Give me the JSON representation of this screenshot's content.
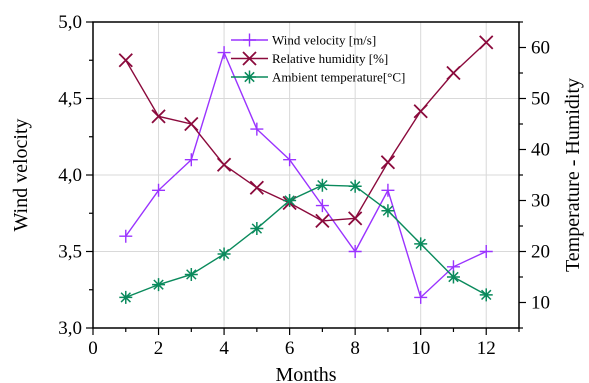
{
  "chart_data": {
    "type": "line",
    "xlabel": "Months",
    "ylabel_left": "Wind velocity",
    "ylabel_right": "Temperature - Humidity",
    "x_range": [
      0,
      13
    ],
    "x_ticks": [
      0,
      2,
      4,
      6,
      8,
      10,
      12
    ],
    "x_tick_labels": [
      "0",
      "2",
      "4",
      "6",
      "8",
      "10",
      "12"
    ],
    "y_left_range": [
      3.0,
      5.0
    ],
    "y_left_ticks": [
      3.0,
      3.5,
      4.0,
      4.5,
      5.0
    ],
    "y_left_tick_labels": [
      "3,0",
      "3,5",
      "4,0",
      "4,5",
      "5,0"
    ],
    "y_right_range": [
      5,
      65
    ],
    "y_right_ticks": [
      10,
      20,
      30,
      40,
      50,
      60
    ],
    "y_right_tick_labels": [
      "10",
      "20",
      "30",
      "40",
      "50",
      "60"
    ],
    "grid": true,
    "legend_position": "top-center",
    "x": [
      1,
      2,
      3,
      4,
      5,
      6,
      7,
      8,
      9,
      10,
      11,
      12
    ],
    "series": [
      {
        "name": "Wind velocity [m/s]",
        "axis": "left",
        "marker": "plus",
        "color": "#9a33ff",
        "values": [
          3.6,
          3.9,
          4.1,
          4.8,
          4.3,
          4.1,
          3.8,
          3.5,
          3.9,
          3.2,
          3.4,
          3.5
        ]
      },
      {
        "name": "Relative humidity [%]",
        "axis": "right",
        "marker": "x",
        "color": "#8b0a3c",
        "values": [
          57.5,
          46.5,
          45.0,
          37.0,
          32.5,
          29.5,
          26.0,
          26.5,
          37.5,
          47.5,
          55.0,
          61.0
        ]
      },
      {
        "name": "Ambient temperature[°C]",
        "axis": "right",
        "marker": "star",
        "color": "#0a8a5c",
        "values": [
          11.0,
          13.5,
          15.5,
          19.5,
          24.5,
          30.0,
          33.0,
          32.8,
          28.0,
          21.5,
          15.0,
          11.5
        ]
      }
    ]
  }
}
